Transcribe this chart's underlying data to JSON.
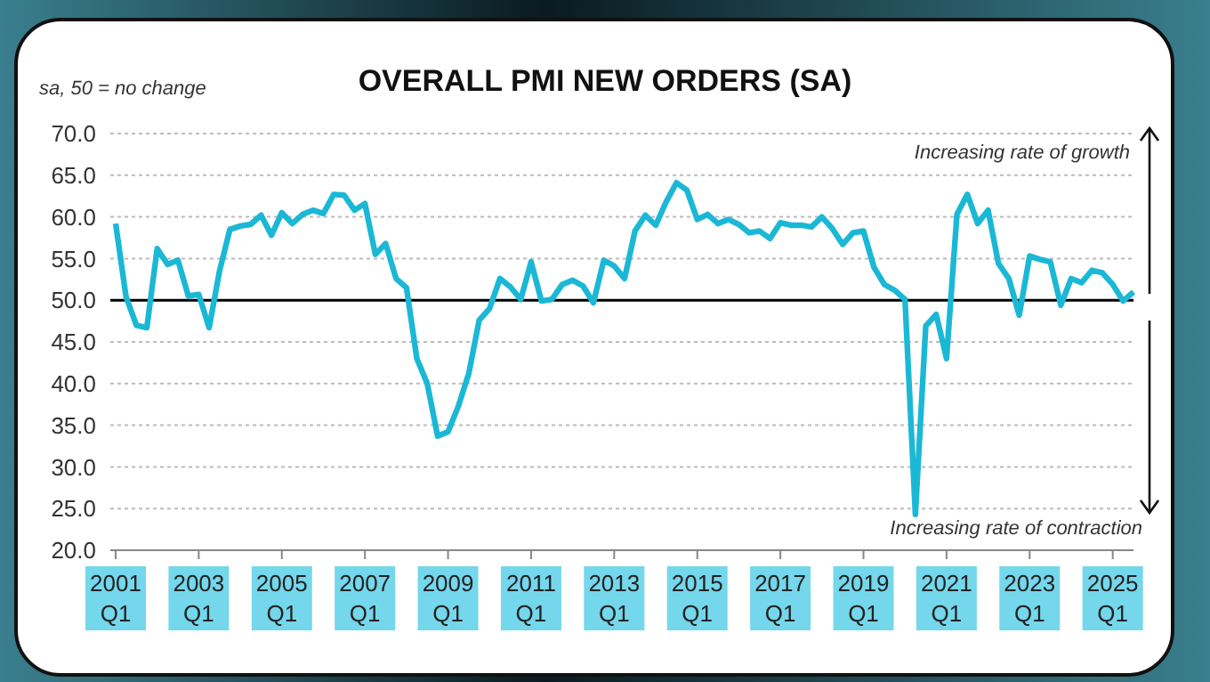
{
  "chart_data": {
    "type": "line",
    "title": "OVERALL PMI NEW ORDERS (SA)",
    "annotations": [
      "sa, 50 = no change",
      "Increasing rate of growth",
      "Increasing rate of contraction"
    ],
    "categories": [
      "2001\nQ1",
      null,
      null,
      null,
      null,
      null,
      null,
      null,
      "2003\nQ1",
      null,
      null,
      null,
      null,
      null,
      null,
      null,
      "2005\nQ1",
      null,
      null,
      null,
      null,
      null,
      null,
      null,
      "2007\nQ1",
      null,
      null,
      null,
      null,
      null,
      null,
      null,
      "2009\nQ1",
      null,
      null,
      null,
      null,
      null,
      null,
      null,
      "2011\nQ1",
      null,
      null,
      null,
      null,
      null,
      null,
      null,
      "2013\nQ1",
      null,
      null,
      null,
      null,
      null,
      null,
      null,
      "2015\nQ1",
      null,
      null,
      null,
      null,
      null,
      null,
      null,
      "2017\nQ1",
      null,
      null,
      null,
      null,
      null,
      null,
      null,
      "2019\nQ1",
      null,
      null,
      null,
      null,
      null,
      null,
      null,
      "2021\nQ1",
      null,
      null,
      null,
      null,
      null,
      null,
      null,
      "2023\nQ1",
      null,
      null,
      null,
      null,
      null,
      null,
      null,
      "2025\nQ1",
      null,
      null
    ],
    "series": [
      {
        "color": "#1bb8d6",
        "values": [
          59.2,
          50.4,
          47.0,
          46.7,
          56.2,
          54.3,
          54.8,
          50.5,
          50.7,
          46.7,
          53.5,
          58.5,
          58.9,
          59.1,
          60.2,
          57.8,
          60.5,
          59.2,
          60.3,
          60.8,
          60.4,
          62.7,
          62.6,
          60.8,
          61.6,
          55.5,
          56.8,
          52.6,
          51.5,
          43.0,
          40.0,
          33.7,
          34.2,
          37.3,
          41.2,
          47.6,
          49.0,
          52.6,
          51.6,
          50.1,
          54.6,
          49.9,
          50.1,
          51.9,
          52.4,
          51.7,
          49.7,
          54.8,
          54.1,
          52.6,
          58.3,
          60.2,
          59.0,
          61.8,
          64.1,
          63.2,
          59.7,
          60.3,
          59.2,
          59.7,
          59.1,
          58.1,
          58.3,
          57.4,
          59.3,
          59.0,
          59.0,
          58.8,
          60.0,
          58.6,
          56.7,
          58.1,
          58.3,
          54.0,
          51.9,
          51.2,
          50.1,
          24.3,
          46.9,
          48.3,
          43.0,
          60.3,
          62.7,
          59.2,
          60.8,
          54.4,
          52.6,
          48.2,
          55.3,
          54.9,
          54.6,
          49.4,
          52.6,
          52.1,
          53.6,
          53.3,
          51.9,
          49.9,
          51.0
        ]
      }
    ],
    "ylim": [
      20,
      70
    ],
    "yticks": [
      {
        "value": 20,
        "label": "20.0"
      },
      {
        "value": 25,
        "label": "25.0"
      },
      {
        "value": 30,
        "label": "30.0"
      },
      {
        "value": 35,
        "label": "35.0"
      },
      {
        "value": 40,
        "label": "40.0"
      },
      {
        "value": 45,
        "label": "45.0"
      },
      {
        "value": 50,
        "label": "50.0"
      },
      {
        "value": 55,
        "label": "55.0"
      },
      {
        "value": 60,
        "label": "60.0"
      },
      {
        "value": 65,
        "label": "65.0"
      },
      {
        "value": 70,
        "label": "70.0"
      }
    ],
    "ref_lines": [
      {
        "axis": "y",
        "value": 50,
        "color": "#000000"
      }
    ],
    "grid": "y",
    "legend": false,
    "marker": "none",
    "line_style": "solid"
  }
}
